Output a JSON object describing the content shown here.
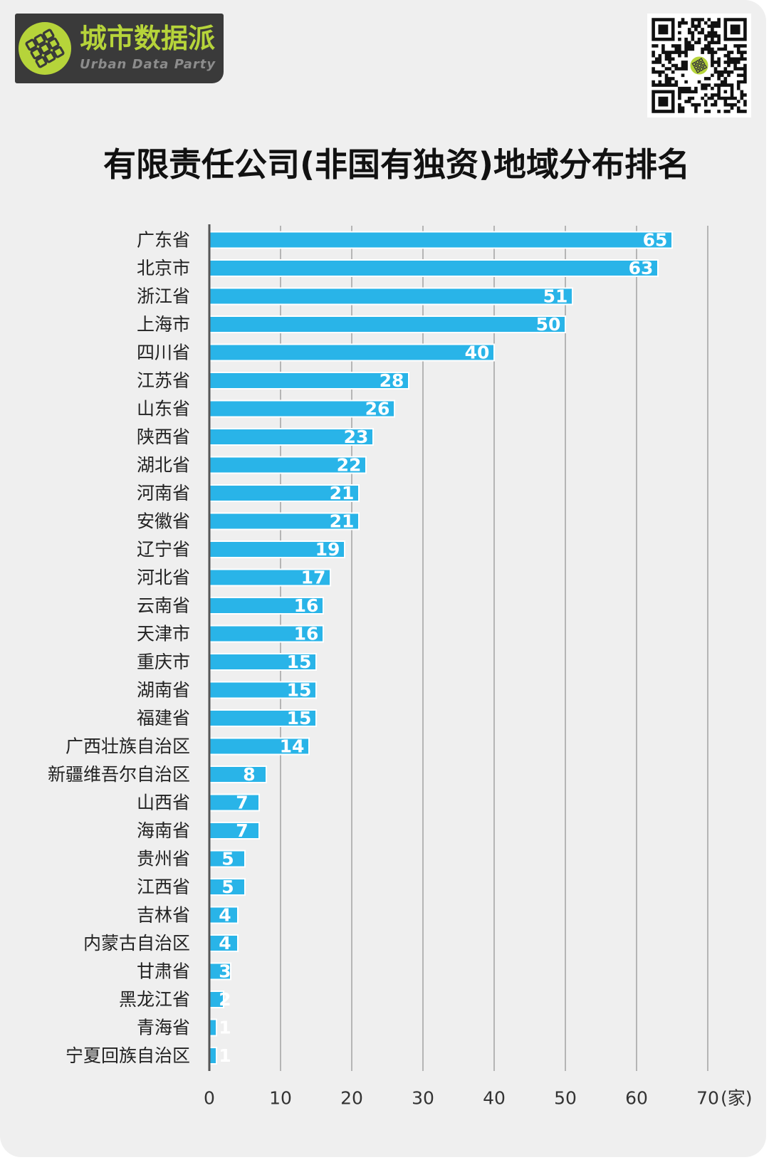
{
  "logo": {
    "name_cn": "城市数据派",
    "name_en": "Urban Data Party",
    "icon": "city-grid-logo-icon"
  },
  "qr_code": {
    "icon": "qr-code"
  },
  "colors": {
    "background": "#efefef",
    "bar": "#29b4e8",
    "bar_outline": "#ffffff",
    "value_label": "#ffffff",
    "gridline": "#b5b5b5",
    "axis": "#555555",
    "logo_background": "#3a3a3a",
    "logo_accent": "#b6d43a",
    "logo_subtext": "#8c8c8c"
  },
  "chart_data": {
    "type": "bar",
    "orientation": "horizontal",
    "title": "有限责任公司(非国有独资)地域分布排名",
    "categories": [
      "广东省",
      "北京市",
      "浙江省",
      "上海市",
      "四川省",
      "江苏省",
      "山东省",
      "陕西省",
      "湖北省",
      "河南省",
      "安徽省",
      "辽宁省",
      "河北省",
      "云南省",
      "天津市",
      "重庆市",
      "湖南省",
      "福建省",
      "广西壮族自治区",
      "新疆维吾尔自治区",
      "山西省",
      "海南省",
      "贵州省",
      "江西省",
      "吉林省",
      "内蒙古自治区",
      "甘肃省",
      "黑龙江省",
      "青海省",
      "宁夏回族自治区"
    ],
    "values": [
      65,
      63,
      51,
      50,
      40,
      28,
      26,
      23,
      22,
      21,
      21,
      19,
      17,
      16,
      16,
      15,
      15,
      15,
      14,
      8,
      7,
      7,
      5,
      5,
      4,
      4,
      3,
      2,
      1,
      1
    ],
    "xlim": [
      0,
      70
    ],
    "xticks": [
      0,
      10,
      20,
      30,
      40,
      50,
      60,
      70
    ],
    "x_unit": "(家)",
    "grid": true,
    "data_labels": "inside-end",
    "legend": "none"
  }
}
